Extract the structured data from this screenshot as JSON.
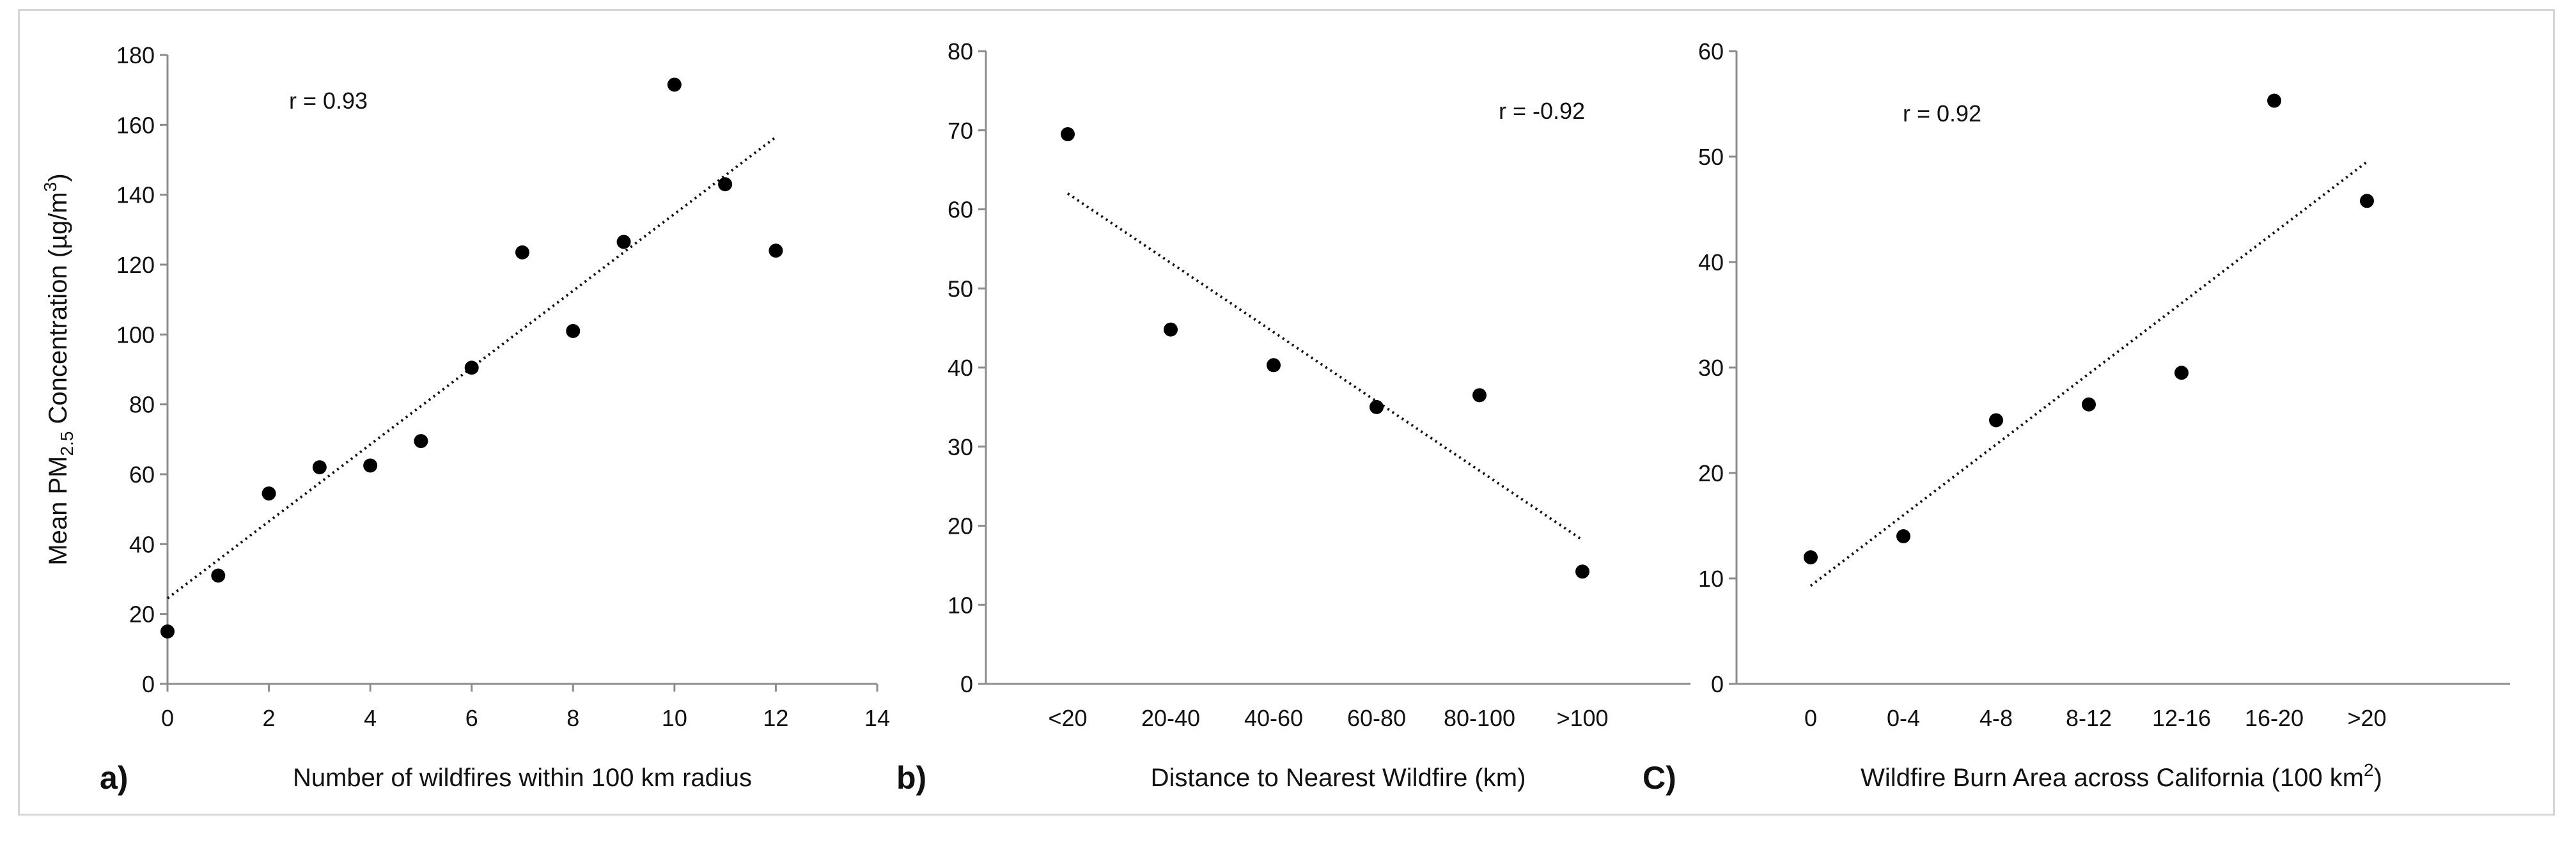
{
  "figure": {
    "ylabel_parts": {
      "prefix": "Mean PM",
      "sub": "2.5",
      "mid": " Concentration (µg/m",
      "sup": "3",
      "suffix": ")"
    }
  },
  "chart_data": [
    {
      "id": "a",
      "type": "scatter",
      "panel_label": "a)",
      "xlabel": "Number of wildfires within 100 km radius",
      "ylabel": "Mean PM2.5 Concentration (µg/m3)",
      "x": [
        0,
        1,
        2,
        3,
        4,
        5,
        6,
        7,
        8,
        9,
        10,
        11,
        12
      ],
      "y": [
        15,
        31,
        54.5,
        62,
        62.5,
        69.5,
        90.5,
        123.5,
        101,
        126.5,
        171.5,
        143,
        124
      ],
      "xlim": [
        0,
        14
      ],
      "ylim": [
        0,
        180
      ],
      "xticks": [
        0,
        2,
        4,
        6,
        8,
        10,
        12,
        14
      ],
      "yticks": [
        0,
        20,
        40,
        60,
        80,
        100,
        120,
        140,
        160,
        180
      ],
      "trendline": {
        "x": [
          0,
          12
        ],
        "y": [
          24.5,
          156.5
        ],
        "style": "dotted"
      },
      "annotation": "r = 0.93"
    },
    {
      "id": "b",
      "type": "scatter",
      "panel_label": "b)",
      "xlabel": "Distance to Nearest Wildfire (km)",
      "categories": [
        "<20",
        "20-40",
        "40-60",
        "60-80",
        "80-100",
        ">100"
      ],
      "y": [
        69.5,
        44.8,
        40.3,
        35,
        36.5,
        14.2
      ],
      "ylim": [
        0,
        80
      ],
      "yticks": [
        0,
        10,
        20,
        30,
        40,
        50,
        60,
        70,
        80
      ],
      "trendline": {
        "y": [
          62,
          18.2
        ],
        "style": "dotted"
      },
      "annotation": "r = -0.92"
    },
    {
      "id": "c",
      "type": "scatter",
      "panel_label": "C)",
      "xlabel_parts": {
        "main": "Wildfire Burn Area across California ",
        "unit": "(100 km",
        "sup": "2",
        "suffix": ")"
      },
      "xlabel": "Wildfire Burn Area across California (100 km2)",
      "categories": [
        "0",
        "0-4",
        "4-8",
        "8-12",
        "12-16",
        "16-20",
        ">20"
      ],
      "y": [
        12,
        14,
        25,
        26.5,
        29.5,
        55.3,
        45.8
      ],
      "ylim": [
        0,
        60
      ],
      "yticks": [
        0,
        10,
        20,
        30,
        40,
        50,
        60
      ],
      "trendline": {
        "y": [
          9.3,
          49.5
        ],
        "style": "dotted"
      },
      "annotation": "r = 0.92"
    }
  ]
}
